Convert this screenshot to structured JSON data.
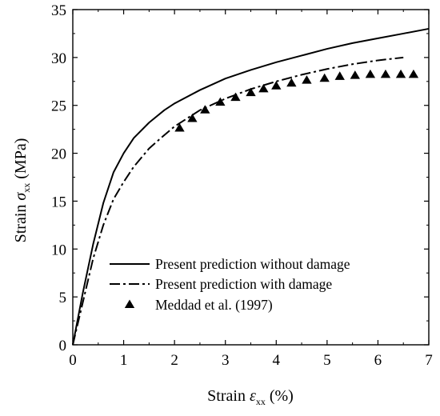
{
  "chart_data": {
    "type": "line",
    "xlabel": {
      "prefix": "Strain ",
      "symbol": "ε",
      "subscript": "xx",
      "suffix": " (%)"
    },
    "ylabel": {
      "prefix": "Strain ",
      "symbol": "σ",
      "subscript": "xx",
      "suffix": " (MPa)"
    },
    "xlim": [
      0,
      7
    ],
    "ylim": [
      0,
      35
    ],
    "xticks": [
      0,
      1,
      2,
      3,
      4,
      5,
      6,
      7
    ],
    "yticks": [
      0,
      5,
      10,
      15,
      20,
      25,
      30,
      35
    ],
    "grid": false,
    "legend_position": "bottom-left",
    "series": [
      {
        "name": "Present prediction without damage",
        "style": "solid",
        "marker": "none",
        "x": [
          0,
          0.2,
          0.4,
          0.6,
          0.8,
          1.0,
          1.2,
          1.5,
          1.8,
          2.0,
          2.5,
          3.0,
          3.5,
          4.0,
          4.5,
          5.0,
          5.5,
          6.0,
          6.5,
          7.0
        ],
        "y": [
          0,
          5.5,
          10.5,
          14.8,
          18.0,
          20.0,
          21.6,
          23.2,
          24.5,
          25.2,
          26.6,
          27.8,
          28.7,
          29.5,
          30.2,
          30.9,
          31.5,
          32.0,
          32.5,
          33.0
        ]
      },
      {
        "name": "Present prediction with damage",
        "style": "dashdot",
        "marker": "none",
        "x": [
          0,
          0.2,
          0.4,
          0.6,
          0.8,
          1.0,
          1.2,
          1.5,
          1.8,
          2.0,
          2.5,
          3.0,
          3.5,
          4.0,
          4.5,
          5.0,
          5.5,
          6.0,
          6.5
        ],
        "y": [
          0,
          4.5,
          9.0,
          12.5,
          15.2,
          17.0,
          18.6,
          20.5,
          21.9,
          22.8,
          24.5,
          25.7,
          26.7,
          27.5,
          28.2,
          28.8,
          29.3,
          29.7,
          30.0
        ]
      },
      {
        "name": "Meddad et al. (1997)",
        "style": "none",
        "marker": "triangle",
        "x": [
          2.1,
          2.35,
          2.6,
          2.9,
          3.2,
          3.5,
          3.75,
          4.0,
          4.3,
          4.6,
          4.95,
          5.25,
          5.55,
          5.85,
          6.15,
          6.45,
          6.7
        ],
        "y": [
          22.6,
          23.6,
          24.5,
          25.3,
          25.8,
          26.3,
          26.7,
          27.0,
          27.3,
          27.6,
          27.8,
          28.0,
          28.1,
          28.2,
          28.2,
          28.2,
          28.2
        ]
      }
    ]
  }
}
